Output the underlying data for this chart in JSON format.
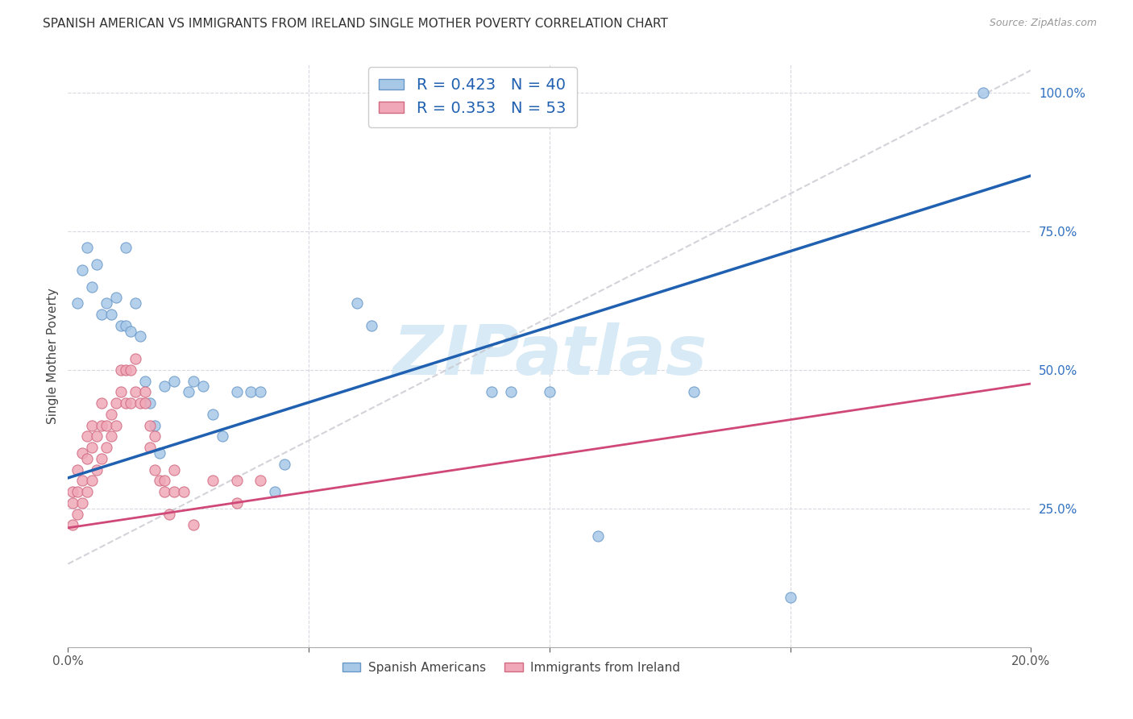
{
  "title": "SPANISH AMERICAN VS IMMIGRANTS FROM IRELAND SINGLE MOTHER POVERTY CORRELATION CHART",
  "source": "Source: ZipAtlas.com",
  "ylabel": "Single Mother Poverty",
  "xlim": [
    0.0,
    0.2
  ],
  "ylim": [
    0.0,
    1.05
  ],
  "blue_R": 0.423,
  "blue_N": 40,
  "pink_R": 0.353,
  "pink_N": 53,
  "blue_color": "#A8C8E8",
  "pink_color": "#F0A8B8",
  "blue_edge_color": "#6898C8",
  "pink_edge_color": "#D06880",
  "blue_line_color": "#2060B0",
  "pink_line_color": "#D04878",
  "ref_line_color": "#C8C8D0",
  "watermark": "ZIPatlas",
  "watermark_color": "#D8EAF5",
  "background_color": "#FFFFFF",
  "grid_color": "#D8D8E0",
  "blue_scatter": [
    [
      0.002,
      0.62
    ],
    [
      0.003,
      0.68
    ],
    [
      0.004,
      0.72
    ],
    [
      0.005,
      0.65
    ],
    [
      0.006,
      0.69
    ],
    [
      0.007,
      0.6
    ],
    [
      0.008,
      0.62
    ],
    [
      0.009,
      0.6
    ],
    [
      0.01,
      0.63
    ],
    [
      0.011,
      0.58
    ],
    [
      0.012,
      0.58
    ],
    [
      0.012,
      0.72
    ],
    [
      0.013,
      0.57
    ],
    [
      0.014,
      0.62
    ],
    [
      0.015,
      0.56
    ],
    [
      0.016,
      0.48
    ],
    [
      0.017,
      0.44
    ],
    [
      0.018,
      0.4
    ],
    [
      0.019,
      0.35
    ],
    [
      0.02,
      0.47
    ],
    [
      0.022,
      0.48
    ],
    [
      0.025,
      0.46
    ],
    [
      0.026,
      0.48
    ],
    [
      0.028,
      0.47
    ],
    [
      0.03,
      0.42
    ],
    [
      0.032,
      0.38
    ],
    [
      0.035,
      0.46
    ],
    [
      0.038,
      0.46
    ],
    [
      0.04,
      0.46
    ],
    [
      0.043,
      0.28
    ],
    [
      0.045,
      0.33
    ],
    [
      0.06,
      0.62
    ],
    [
      0.063,
      0.58
    ],
    [
      0.088,
      0.46
    ],
    [
      0.092,
      0.46
    ],
    [
      0.1,
      0.46
    ],
    [
      0.11,
      0.2
    ],
    [
      0.13,
      0.46
    ],
    [
      0.15,
      0.09
    ],
    [
      0.19,
      1.0
    ]
  ],
  "pink_scatter": [
    [
      0.001,
      0.22
    ],
    [
      0.001,
      0.26
    ],
    [
      0.001,
      0.28
    ],
    [
      0.002,
      0.24
    ],
    [
      0.002,
      0.28
    ],
    [
      0.002,
      0.32
    ],
    [
      0.003,
      0.26
    ],
    [
      0.003,
      0.3
    ],
    [
      0.003,
      0.35
    ],
    [
      0.004,
      0.28
    ],
    [
      0.004,
      0.34
    ],
    [
      0.004,
      0.38
    ],
    [
      0.005,
      0.3
    ],
    [
      0.005,
      0.36
    ],
    [
      0.005,
      0.4
    ],
    [
      0.006,
      0.32
    ],
    [
      0.006,
      0.38
    ],
    [
      0.007,
      0.34
    ],
    [
      0.007,
      0.4
    ],
    [
      0.007,
      0.44
    ],
    [
      0.008,
      0.36
    ],
    [
      0.008,
      0.4
    ],
    [
      0.009,
      0.38
    ],
    [
      0.009,
      0.42
    ],
    [
      0.01,
      0.4
    ],
    [
      0.01,
      0.44
    ],
    [
      0.011,
      0.46
    ],
    [
      0.011,
      0.5
    ],
    [
      0.012,
      0.44
    ],
    [
      0.012,
      0.5
    ],
    [
      0.013,
      0.44
    ],
    [
      0.013,
      0.5
    ],
    [
      0.014,
      0.46
    ],
    [
      0.014,
      0.52
    ],
    [
      0.015,
      0.44
    ],
    [
      0.016,
      0.44
    ],
    [
      0.016,
      0.46
    ],
    [
      0.017,
      0.36
    ],
    [
      0.017,
      0.4
    ],
    [
      0.018,
      0.32
    ],
    [
      0.018,
      0.38
    ],
    [
      0.019,
      0.3
    ],
    [
      0.02,
      0.28
    ],
    [
      0.02,
      0.3
    ],
    [
      0.021,
      0.24
    ],
    [
      0.022,
      0.28
    ],
    [
      0.022,
      0.32
    ],
    [
      0.024,
      0.28
    ],
    [
      0.026,
      0.22
    ],
    [
      0.03,
      0.3
    ],
    [
      0.035,
      0.26
    ],
    [
      0.035,
      0.3
    ],
    [
      0.04,
      0.3
    ]
  ]
}
